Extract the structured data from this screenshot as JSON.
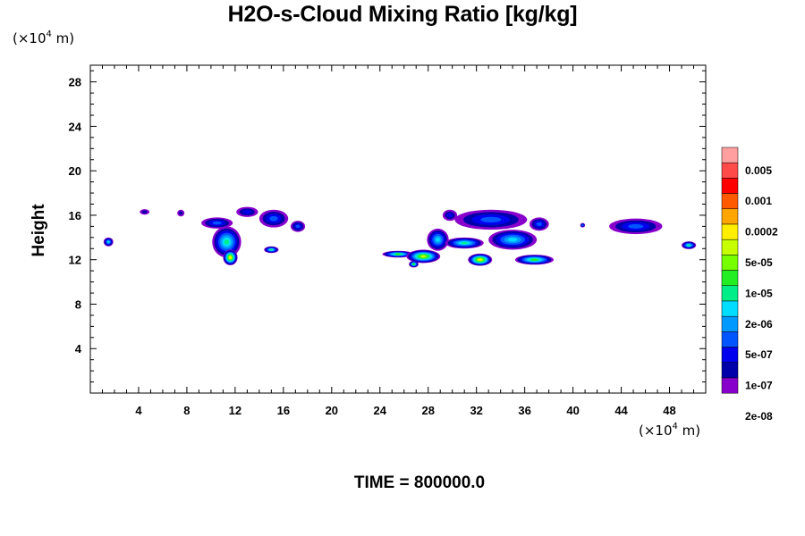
{
  "chart_data": {
    "type": "heatmap",
    "title": "H2O-s-Cloud Mixing Ratio [kg/kg]",
    "ylabel": "Height",
    "x_unit_label": "(×10",
    "x_unit_exp": "4",
    "x_unit_suffix": " m)",
    "y_unit_label": "(×10",
    "y_unit_exp": "4",
    "y_unit_suffix": " m)",
    "xlim": [
      0,
      51
    ],
    "ylim": [
      0,
      29.5
    ],
    "x_ticks": [
      4,
      8,
      12,
      16,
      20,
      24,
      28,
      32,
      36,
      40,
      44,
      48
    ],
    "y_ticks": [
      4,
      8,
      12,
      16,
      20,
      24,
      28
    ],
    "legend": {
      "labels": [
        "0.005",
        "0.001",
        "0.0002",
        "5e-05",
        "1e-05",
        "2e-06",
        "5e-07",
        "1e-07",
        "2e-08"
      ],
      "colors": [
        "#ff9f9f",
        "#ff4a4a",
        "#ff0000",
        "#ff5a00",
        "#ffa500",
        "#ffee00",
        "#c8ff00",
        "#77ff00",
        "#22ee22",
        "#00ee88",
        "#00ddff",
        "#0099ff",
        "#0055ff",
        "#0000ee",
        "#0000aa",
        "#8800cc"
      ]
    },
    "cloud_blobs": [
      {
        "x": 1.5,
        "y": 13.6,
        "rx": 0.4,
        "ry": 0.4,
        "level": 10
      },
      {
        "x": 4.5,
        "y": 16.3,
        "rx": 0.4,
        "ry": 0.25,
        "level": 14
      },
      {
        "x": 7.5,
        "y": 16.2,
        "rx": 0.3,
        "ry": 0.3,
        "level": 14
      },
      {
        "x": 10.5,
        "y": 15.3,
        "rx": 1.3,
        "ry": 0.5,
        "level": 12
      },
      {
        "x": 11.3,
        "y": 13.6,
        "rx": 1.2,
        "ry": 1.4,
        "level": 9
      },
      {
        "x": 11.6,
        "y": 12.2,
        "rx": 0.6,
        "ry": 0.7,
        "level": 5
      },
      {
        "x": 13.0,
        "y": 16.3,
        "rx": 0.9,
        "ry": 0.45,
        "level": 13
      },
      {
        "x": 15.2,
        "y": 15.7,
        "rx": 1.2,
        "ry": 0.8,
        "level": 12
      },
      {
        "x": 15.0,
        "y": 12.9,
        "rx": 0.6,
        "ry": 0.3,
        "level": 9
      },
      {
        "x": 17.2,
        "y": 15.0,
        "rx": 0.6,
        "ry": 0.5,
        "level": 12
      },
      {
        "x": 25.5,
        "y": 12.5,
        "rx": 1.3,
        "ry": 0.3,
        "level": 8
      },
      {
        "x": 27.6,
        "y": 12.3,
        "rx": 1.4,
        "ry": 0.6,
        "level": 6
      },
      {
        "x": 28.8,
        "y": 13.8,
        "rx": 0.9,
        "ry": 1.0,
        "level": 10
      },
      {
        "x": 26.8,
        "y": 11.6,
        "rx": 0.4,
        "ry": 0.3,
        "level": 8
      },
      {
        "x": 29.8,
        "y": 16.0,
        "rx": 0.6,
        "ry": 0.5,
        "level": 13
      },
      {
        "x": 33.2,
        "y": 15.6,
        "rx": 3.0,
        "ry": 0.9,
        "level": 12
      },
      {
        "x": 31.0,
        "y": 13.5,
        "rx": 1.6,
        "ry": 0.5,
        "level": 9
      },
      {
        "x": 32.3,
        "y": 12.0,
        "rx": 1.0,
        "ry": 0.55,
        "level": 5
      },
      {
        "x": 35.0,
        "y": 13.8,
        "rx": 2.0,
        "ry": 0.9,
        "level": 10
      },
      {
        "x": 36.8,
        "y": 12.0,
        "rx": 1.6,
        "ry": 0.45,
        "level": 8
      },
      {
        "x": 37.2,
        "y": 15.2,
        "rx": 0.8,
        "ry": 0.6,
        "level": 12
      },
      {
        "x": 40.8,
        "y": 15.1,
        "rx": 0.2,
        "ry": 0.2,
        "level": 12
      },
      {
        "x": 45.2,
        "y": 15.0,
        "rx": 2.2,
        "ry": 0.7,
        "level": 12
      },
      {
        "x": 49.6,
        "y": 13.3,
        "rx": 0.6,
        "ry": 0.35,
        "level": 9
      }
    ]
  },
  "footer": {
    "time_label": "TIME = 800000.0"
  }
}
